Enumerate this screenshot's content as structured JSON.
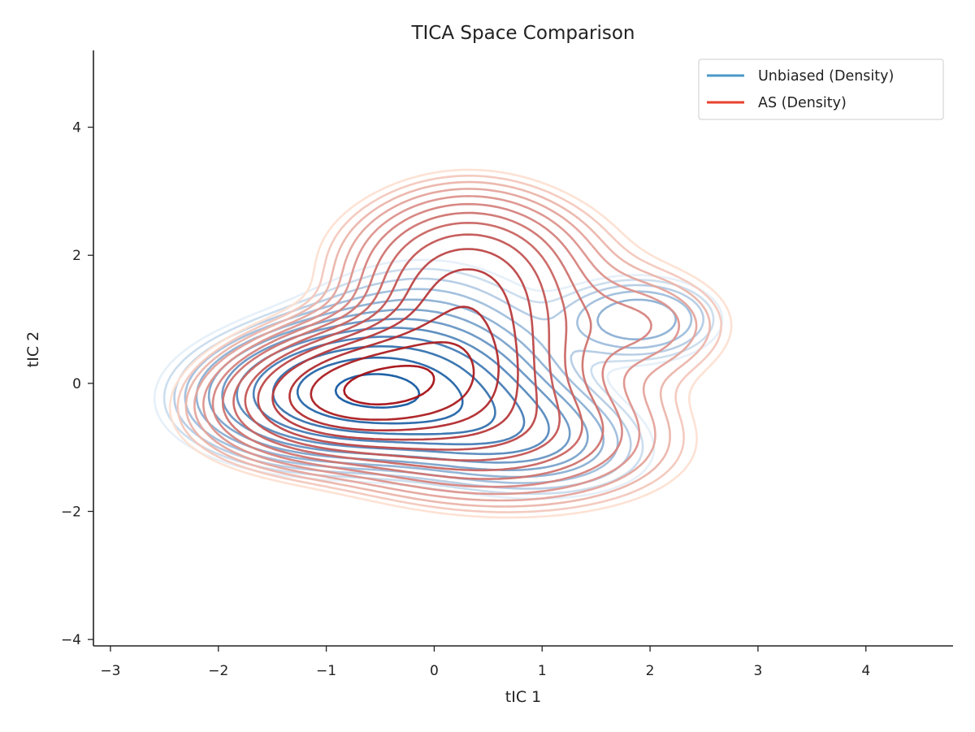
{
  "chart_data": {
    "type": "contour",
    "title": "TICA Space Comparison",
    "xlabel": "tIC 1",
    "ylabel": "tIC 2",
    "xlim": [
      -3.15,
      4.8
    ],
    "ylim": [
      -4.1,
      5.2
    ],
    "xticks": [
      -3,
      -2,
      -1,
      0,
      1,
      2,
      3,
      4
    ],
    "yticks": [
      -4,
      -2,
      0,
      2,
      4
    ],
    "xtick_labels": [
      "−3",
      "−2",
      "−1",
      "0",
      "1",
      "2",
      "3",
      "4"
    ],
    "ytick_labels": [
      "−4",
      "−2",
      "0",
      "2",
      "4"
    ],
    "grid": false,
    "legend_position": "top-right",
    "series": [
      {
        "name": "Unbiased (Density)",
        "legend_color": "#4a98c9",
        "line_color_light": "#e3eef8",
        "line_color_dark": "#08519c",
        "levels": 12,
        "components": [
          {
            "x": -0.7,
            "y": -0.1,
            "sx": 0.75,
            "sy": 0.55,
            "rho": 0.1,
            "w": 1.0
          },
          {
            "x": 0.4,
            "y": -0.6,
            "sx": 0.75,
            "sy": 0.55,
            "rho": -0.35,
            "w": 0.45
          },
          {
            "x": 1.9,
            "y": 1.0,
            "sx": 0.45,
            "sy": 0.4,
            "rho": 0.0,
            "w": 0.18
          },
          {
            "x": -0.1,
            "y": 0.9,
            "sx": 0.7,
            "sy": 0.7,
            "rho": 0.0,
            "w": 0.12
          }
        ]
      },
      {
        "name": "AS (Density)",
        "legend_color": "#e8412d",
        "line_color_light": "#fde0d2",
        "line_color_dark": "#a50f15",
        "levels": 14,
        "components": [
          {
            "x": -0.65,
            "y": -0.05,
            "sx": 0.7,
            "sy": 0.55,
            "rho": 0.25,
            "w": 1.0
          },
          {
            "x": 0.3,
            "y": 1.1,
            "sx": 0.55,
            "sy": 0.9,
            "rho": 0.0,
            "w": 0.6
          },
          {
            "x": 0.3,
            "y": -0.6,
            "sx": 1.0,
            "sy": 0.7,
            "rho": -0.2,
            "w": 0.45
          },
          {
            "x": 1.9,
            "y": 0.9,
            "sx": 0.55,
            "sy": 0.55,
            "rho": 0.0,
            "w": 0.15
          },
          {
            "x": 0.4,
            "y": 2.0,
            "sx": 0.9,
            "sy": 0.7,
            "rho": 0.0,
            "w": 0.12
          }
        ]
      }
    ]
  }
}
